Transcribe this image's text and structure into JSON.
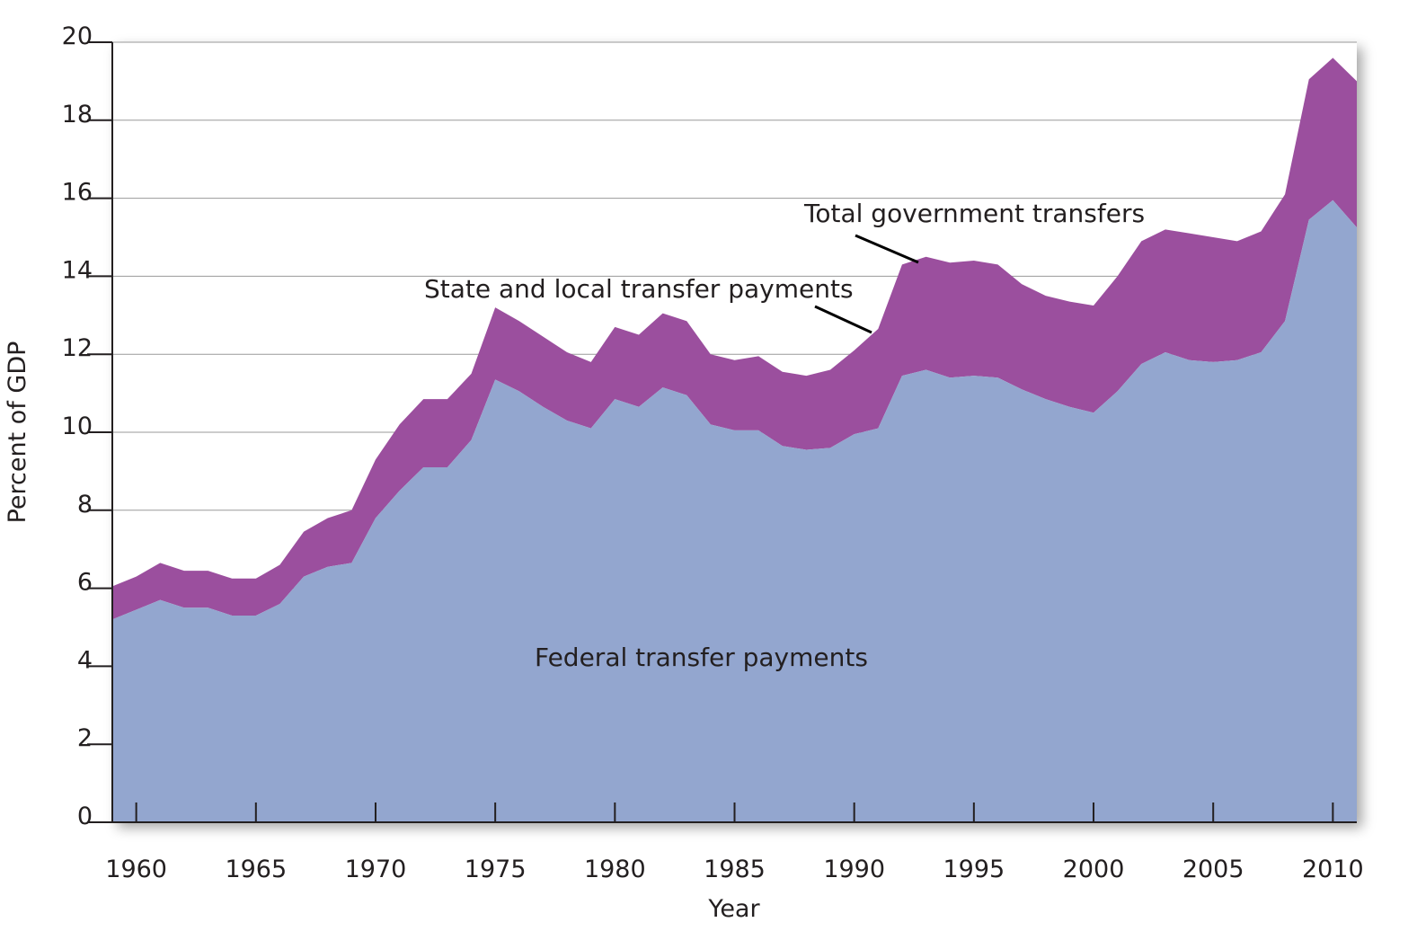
{
  "chart_data": {
    "type": "area",
    "stacked": true,
    "title": "",
    "xlabel": "Year",
    "ylabel": "Percent of GDP",
    "xlim": [
      1959,
      2011
    ],
    "ylim": [
      0,
      20
    ],
    "x_ticks": [
      1960,
      1965,
      1970,
      1975,
      1980,
      1985,
      1990,
      1995,
      2000,
      2005,
      2010
    ],
    "y_ticks": [
      0,
      2,
      4,
      6,
      8,
      10,
      12,
      14,
      16,
      18,
      20
    ],
    "grid": true,
    "x": [
      1959,
      1960,
      1961,
      1962,
      1963,
      1964,
      1965,
      1966,
      1967,
      1968,
      1969,
      1970,
      1971,
      1972,
      1973,
      1974,
      1975,
      1976,
      1977,
      1978,
      1979,
      1980,
      1981,
      1982,
      1983,
      1984,
      1985,
      1986,
      1987,
      1988,
      1989,
      1990,
      1991,
      1992,
      1993,
      1994,
      1995,
      1996,
      1997,
      1998,
      1999,
      2000,
      2001,
      2002,
      2003,
      2004,
      2005,
      2006,
      2007,
      2008,
      2009,
      2010,
      2011
    ],
    "series": [
      {
        "name": "Federal transfer payments",
        "color": "#93a6cf",
        "values": [
          5.2,
          5.45,
          5.7,
          5.5,
          5.5,
          5.3,
          5.3,
          5.6,
          6.3,
          6.55,
          6.65,
          7.8,
          8.5,
          9.1,
          9.1,
          9.8,
          11.35,
          11.05,
          10.65,
          10.3,
          10.1,
          10.85,
          10.65,
          11.15,
          10.95,
          10.2,
          10.05,
          10.05,
          9.65,
          9.55,
          9.6,
          9.95,
          10.1,
          11.45,
          11.6,
          11.4,
          11.45,
          11.4,
          11.1,
          10.85,
          10.65,
          10.5,
          11.05,
          11.75,
          12.05,
          11.85,
          11.8,
          11.85,
          12.05,
          12.85,
          15.45,
          15.95,
          15.25
        ]
      },
      {
        "name": "State and local transfer payments",
        "color": "#9b4f9e",
        "values": [
          0.85,
          0.85,
          0.95,
          0.95,
          0.95,
          0.95,
          0.95,
          1.0,
          1.15,
          1.25,
          1.35,
          1.5,
          1.7,
          1.75,
          1.75,
          1.7,
          1.85,
          1.8,
          1.8,
          1.75,
          1.7,
          1.85,
          1.85,
          1.9,
          1.9,
          1.8,
          1.8,
          1.9,
          1.9,
          1.9,
          2.0,
          2.15,
          2.55,
          2.85,
          2.9,
          2.95,
          2.95,
          2.9,
          2.7,
          2.65,
          2.7,
          2.75,
          2.95,
          3.15,
          3.15,
          3.25,
          3.2,
          3.05,
          3.1,
          3.25,
          3.6,
          3.65,
          3.75
        ]
      }
    ],
    "annotations": {
      "total": "Total government transfers",
      "state_local": "State and local transfer payments",
      "federal": "Federal transfer payments"
    }
  }
}
